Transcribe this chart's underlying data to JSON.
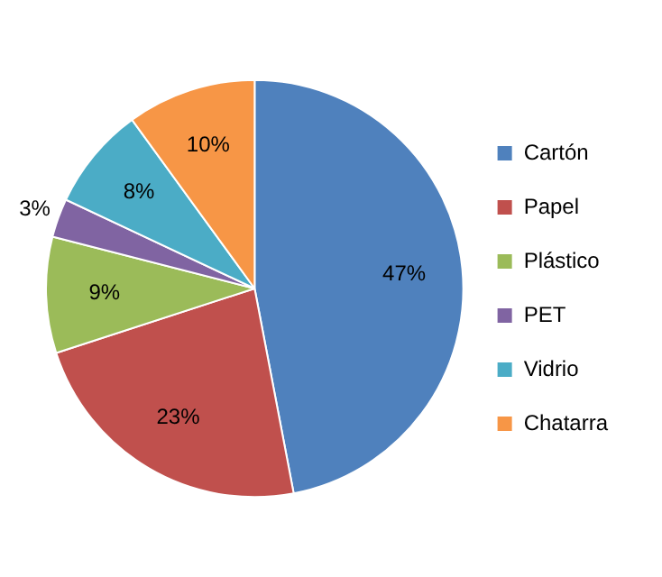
{
  "chart_data": {
    "type": "pie",
    "categories": [
      "Cartón",
      "Papel",
      "Plástico",
      "PET",
      "Vidrio",
      "Chatarra"
    ],
    "values": [
      47,
      23,
      9,
      3,
      8,
      10
    ],
    "colors": [
      "#4f81bd",
      "#c0504d",
      "#9bbb59",
      "#8064a2",
      "#4bacc6",
      "#f79646"
    ],
    "value_labels": [
      "47%",
      "23%",
      "9%",
      "3%",
      "8%",
      "10%"
    ],
    "legend": "right"
  }
}
